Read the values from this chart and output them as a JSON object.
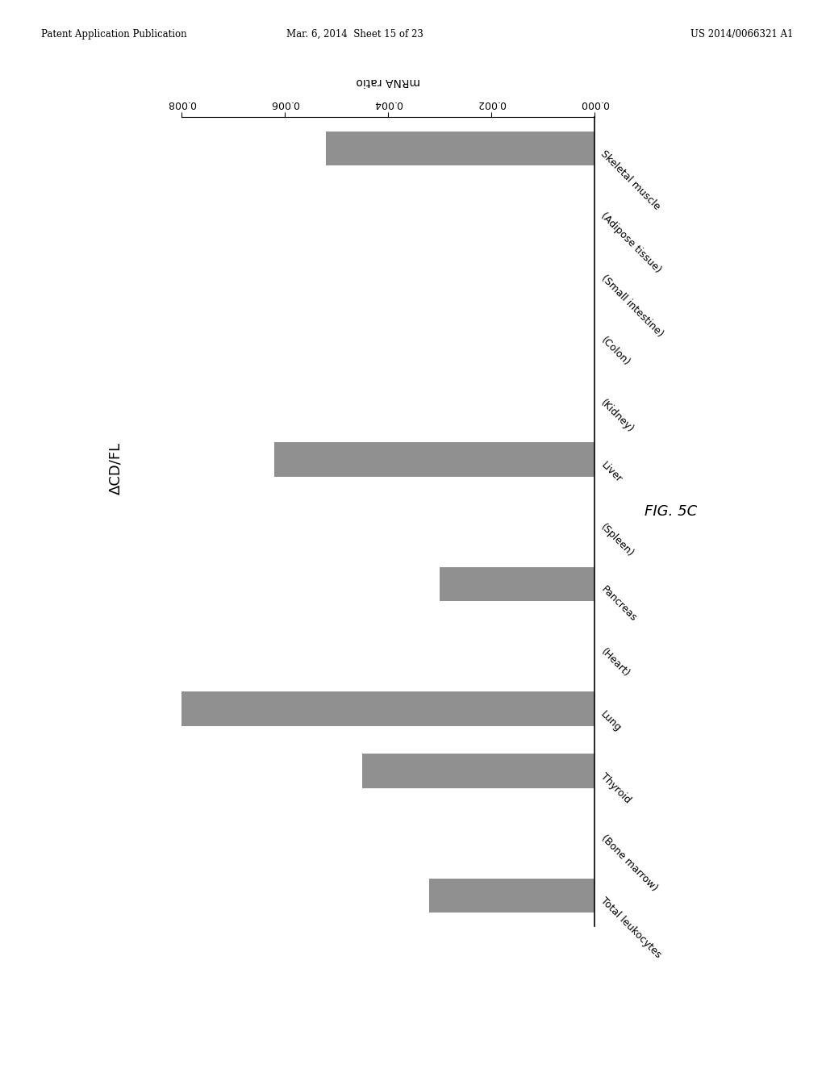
{
  "categories": [
    "Skeletal muscle",
    "(Adipose tissue)",
    "(Small intestine)",
    "(Colon)",
    "(Kidney)",
    "Liver",
    "(Spleen)",
    "Pancreas",
    "(Heart)",
    "Lung",
    "Thyroid",
    "(Bone marrow)",
    "Total leukocytes"
  ],
  "values": [
    0.0052,
    0.0,
    0.0,
    0.0,
    0.0,
    0.0062,
    0.0,
    0.003,
    0.0,
    0.008,
    0.0045,
    0.0,
    0.0032
  ],
  "bar_color": "#909090",
  "xlabel": "mRNA ratio",
  "ylabel": "ΔCD/FL",
  "fig_label": "FIG. 5C",
  "xlim_max": 0.008,
  "xticks": [
    0.0,
    0.002,
    0.004,
    0.006,
    0.008
  ],
  "xtick_labels": [
    "0.000",
    "0.002",
    "0.004",
    "0.006",
    "0.008"
  ],
  "background_color": "#ffffff",
  "bar_height": 0.55,
  "header_text_left": "Patent Application Publication",
  "header_text_mid": "Mar. 6, 2014  Sheet 15 of 23",
  "header_text_right": "US 2014/0066321 A1"
}
